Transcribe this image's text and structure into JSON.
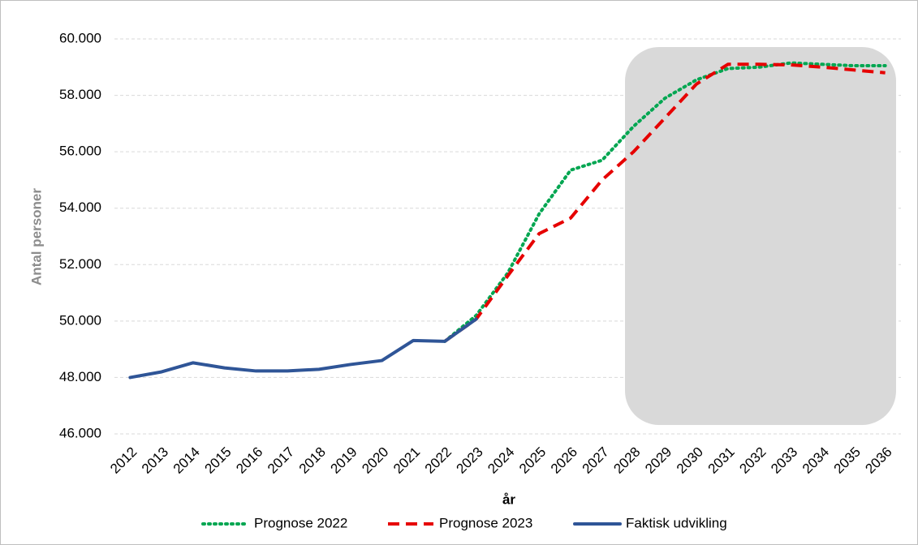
{
  "chart_data": {
    "type": "line",
    "y_label": "Antal personer",
    "x_label": "år",
    "categories": [
      "2012",
      "2013",
      "2014",
      "2015",
      "2016",
      "2017",
      "2018",
      "2019",
      "2020",
      "2021",
      "2022",
      "2023",
      "2024",
      "2025",
      "2026",
      "2027",
      "2028",
      "2029",
      "2030",
      "2031",
      "2032",
      "2033",
      "2034",
      "2035",
      "2036"
    ],
    "series": [
      {
        "name": "Prognose 2022",
        "color": "#00a651",
        "style": "dotted",
        "values": [
          null,
          null,
          null,
          null,
          null,
          null,
          null,
          null,
          null,
          null,
          49280,
          50200,
          51700,
          53800,
          55350,
          55700,
          56900,
          57900,
          58550,
          58950,
          59000,
          59150,
          59100,
          59050,
          59050
        ]
      },
      {
        "name": "Prognose 2023",
        "color": "#e60000",
        "style": "dashed",
        "values": [
          null,
          null,
          null,
          null,
          null,
          null,
          null,
          null,
          null,
          null,
          49280,
          50070,
          51600,
          53100,
          53650,
          55000,
          56000,
          57200,
          58400,
          59100,
          59100,
          59080,
          59000,
          58900,
          58800
        ]
      },
      {
        "name": "Faktisk udvikling",
        "color": "#2f5597",
        "style": "solid",
        "values": [
          48000,
          48200,
          48520,
          48340,
          48230,
          48230,
          48290,
          48460,
          48600,
          49310,
          49280,
          50070,
          null,
          null,
          null,
          null,
          null,
          null,
          null,
          null,
          null,
          null,
          null,
          null,
          null
        ]
      }
    ],
    "ylim": [
      46000,
      60000
    ],
    "yticks": [
      {
        "value": 46000,
        "label": "46.000"
      },
      {
        "value": 48000,
        "label": "48.000"
      },
      {
        "value": 50000,
        "label": "50.000"
      },
      {
        "value": 52000,
        "label": "52.000"
      },
      {
        "value": 54000,
        "label": "54.000"
      },
      {
        "value": 56000,
        "label": "56.000"
      },
      {
        "value": 58000,
        "label": "58.000"
      },
      {
        "value": 60000,
        "label": "60.000"
      }
    ],
    "grid": true,
    "legend": "bottom"
  }
}
